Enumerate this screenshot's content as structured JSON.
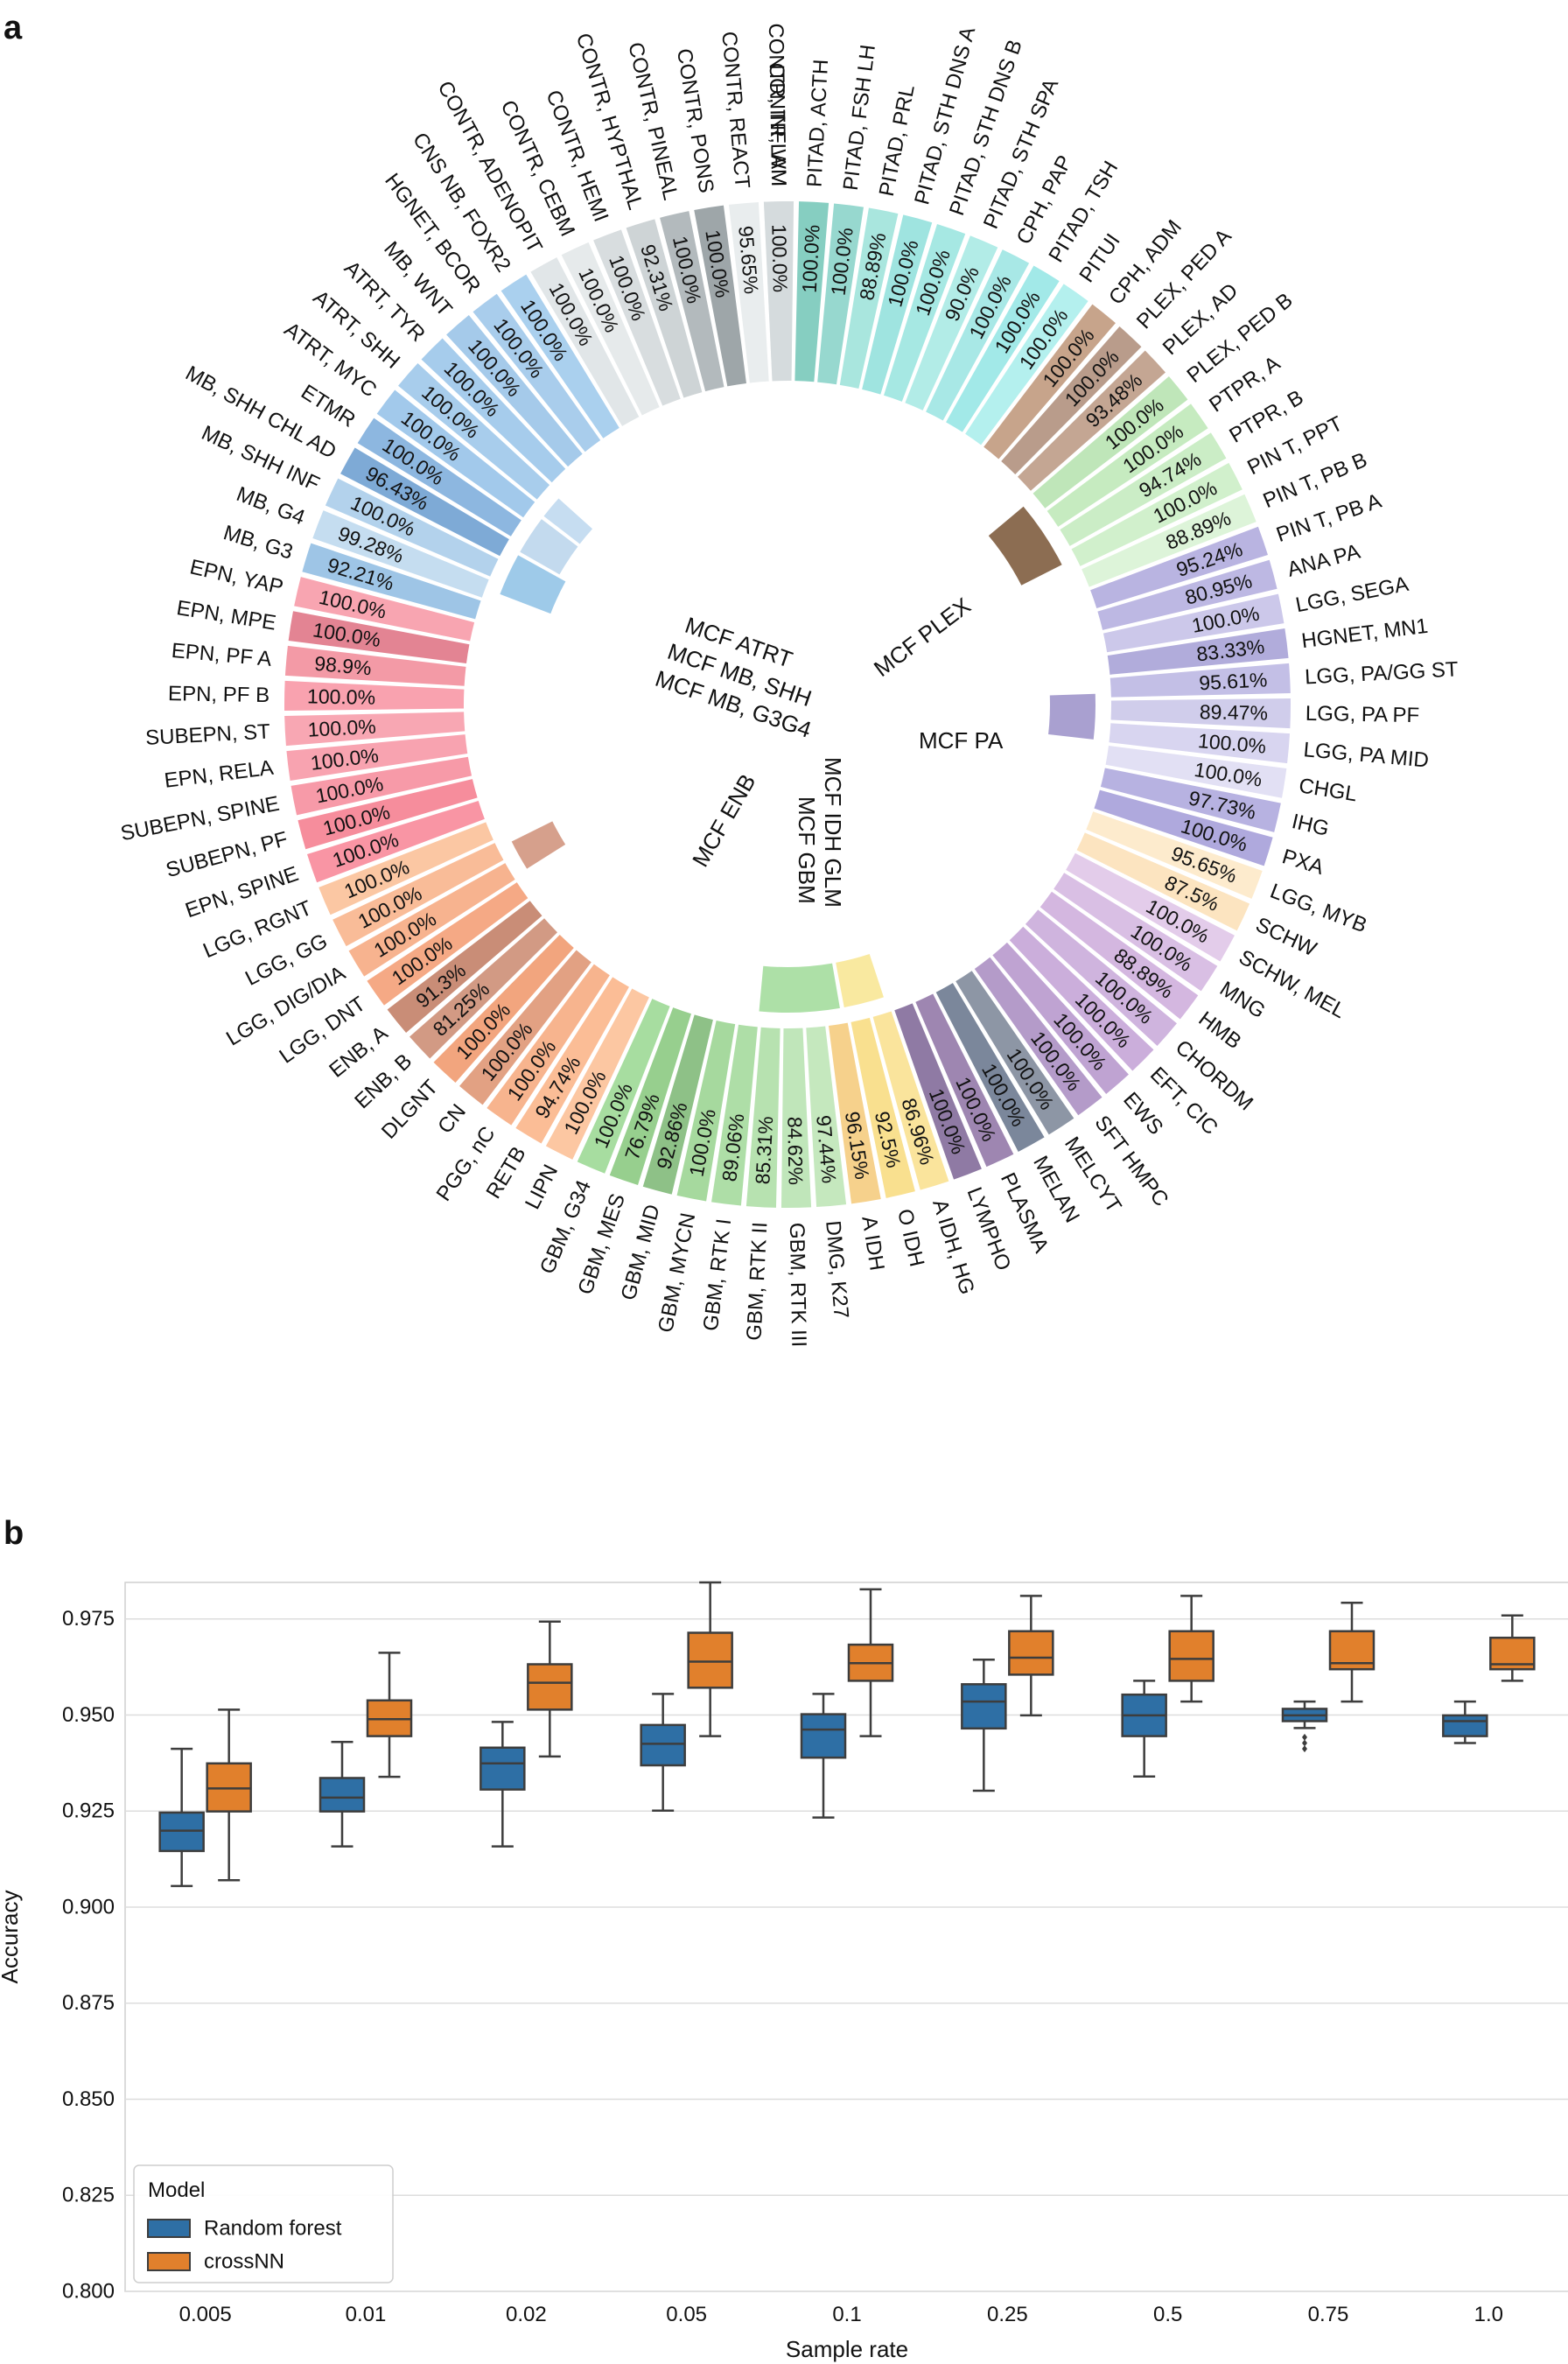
{
  "panels": {
    "a_label": "a",
    "b_label": "b"
  },
  "chart_data": [
    {
      "type": "circular-bar",
      "panel": "a",
      "value_unit": "%",
      "families": [
        {
          "name": "MCF ATRT",
          "color": "#9ECAE9"
        },
        {
          "name": "MCF MB, SHH",
          "color": "#C3DAEE"
        },
        {
          "name": "MCF MB, G3G4",
          "color": "#C6DDF1"
        },
        {
          "name": "MCF PLEX",
          "color": "#8C6D52"
        },
        {
          "name": "MCF PA",
          "color": "#A9A0D0"
        },
        {
          "name": "MCF ENB",
          "color": "#D6A08C"
        },
        {
          "name": "MCF GBM",
          "color": "#ADE0A7"
        },
        {
          "name": "MCF IDH GLM",
          "color": "#F9E9A0"
        }
      ],
      "classes": [
        {
          "label": "CONTR, INFLAM",
          "value": "100.0%",
          "color": "#EAEDED"
        },
        {
          "label": "PITAD, ACTH",
          "value": "100.0%",
          "color": "#86CEC1"
        },
        {
          "label": "PITAD, FSH LH",
          "value": "100.0%",
          "color": "#97D8CF"
        },
        {
          "label": "PITAD, PRL",
          "value": "88.89%",
          "color": "#A9E6DE"
        },
        {
          "label": "PITAD, STH DNS A",
          "value": "100.0%",
          "color": "#9FE4E0"
        },
        {
          "label": "PITAD, STH DNS B",
          "value": "100.0%",
          "color": "#A6E8E3"
        },
        {
          "label": "PITAD, STH SPA",
          "value": "90.0%",
          "color": "#B2ECE7"
        },
        {
          "label": "CPH, PAP",
          "value": "100.0%",
          "color": "#A8E8E6"
        },
        {
          "label": "PITAD, TSH",
          "value": "100.0%",
          "color": "#A2E9E8"
        },
        {
          "label": "PITUI",
          "value": "100.0%",
          "color": "#B4F0EE"
        },
        {
          "label": "CPH, ADM",
          "value": "100.0%",
          "color": "#C7A48B"
        },
        {
          "label": "PLEX, PED A",
          "value": "100.0%",
          "color": "#B99C8B"
        },
        {
          "label": "PLEX, AD",
          "value": "93.48%",
          "color": "#C4A693"
        },
        {
          "label": "PLEX, PED B",
          "value": "100.0%",
          "color": "#BFE6B9"
        },
        {
          "label": "PTPR, A",
          "value": "100.0%",
          "color": "#C6EBC0"
        },
        {
          "label": "PTPR, B",
          "value": "94.74%",
          "color": "#CBEDC6"
        },
        {
          "label": "PIN T, PPT",
          "value": "100.0%",
          "color": "#D1F0CC"
        },
        {
          "label": "PIN T, PB B",
          "value": "88.89%",
          "color": "#DDF4D9"
        },
        {
          "label": "PIN T, PB A",
          "value": "95.24%",
          "color": "#B9B4E1"
        },
        {
          "label": "ANA PA",
          "value": "80.95%",
          "color": "#BDB8E3"
        },
        {
          "label": "LGG, SEGA",
          "value": "100.0%",
          "color": "#CCC8EA"
        },
        {
          "label": "HGNET, MN1",
          "value": "83.33%",
          "color": "#B1ACDB"
        },
        {
          "label": "LGG, PA/GG ST",
          "value": "95.61%",
          "color": "#C3BFE6"
        },
        {
          "label": "LGG, PA PF",
          "value": "89.47%",
          "color": "#D0CDEB"
        },
        {
          "label": "LGG, PA MID",
          "value": "100.0%",
          "color": "#D8D5F0"
        },
        {
          "label": "CHGL",
          "value": "100.0%",
          "color": "#E2E0F4"
        },
        {
          "label": "IHG",
          "value": "97.73%",
          "color": "#B7B2E1"
        },
        {
          "label": "PXA",
          "value": "100.0%",
          "color": "#AFA9DD"
        },
        {
          "label": "LGG, MYB",
          "value": "95.65%",
          "color": "#FDEBCD"
        },
        {
          "label": "SCHW",
          "value": "87.5%",
          "color": "#FCE4C0"
        },
        {
          "label": "SCHW, MEL",
          "value": "100.0%",
          "color": "#E3CCEA"
        },
        {
          "label": "MNG",
          "value": "100.0%",
          "color": "#D9BFE4"
        },
        {
          "label": "HMB",
          "value": "88.89%",
          "color": "#D4B7E0"
        },
        {
          "label": "CHORDM",
          "value": "100.0%",
          "color": "#CFB4DE"
        },
        {
          "label": "EFT, CIC",
          "value": "100.0%",
          "color": "#CBAEDB"
        },
        {
          "label": "EWS",
          "value": "100.0%",
          "color": "#BFA3D2"
        },
        {
          "label": "SFT HMPC",
          "value": "100.0%",
          "color": "#B49BC9"
        },
        {
          "label": "MELCYT",
          "value": "100.0%",
          "color": "#8D96A5"
        },
        {
          "label": "MELAN",
          "value": "100.0%",
          "color": "#7B879B"
        },
        {
          "label": "PLASMA",
          "value": "100.0%",
          "color": "#9E86B1"
        },
        {
          "label": "LYMPHO",
          "value": "100.0%",
          "color": "#8F7AA4"
        },
        {
          "label": "A IDH, HG",
          "value": "86.96%",
          "color": "#FAE49C"
        },
        {
          "label": "O IDH",
          "value": "92.5%",
          "color": "#F9E08F"
        },
        {
          "label": "A IDH",
          "value": "96.15%",
          "color": "#F6D18C"
        },
        {
          "label": "DMG, K27",
          "value": "97.44%",
          "color": "#C5E8BE"
        },
        {
          "label": "GBM, RTK III",
          "value": "84.62%",
          "color": "#C0E6BA"
        },
        {
          "label": "GBM, RTK II",
          "value": "85.31%",
          "color": "#B7E2B0"
        },
        {
          "label": "GBM, RTK I",
          "value": "89.06%",
          "color": "#AEDEA7"
        },
        {
          "label": "GBM, MYCN",
          "value": "100.0%",
          "color": "#A6D99E"
        },
        {
          "label": "GBM, MID",
          "value": "92.86%",
          "color": "#8EC187"
        },
        {
          "label": "GBM, MES",
          "value": "76.79%",
          "color": "#97CF8E"
        },
        {
          "label": "GBM, G34",
          "value": "100.0%",
          "color": "#A7DDA0"
        },
        {
          "label": "LIPN",
          "value": "100.0%",
          "color": "#FCC7A2"
        },
        {
          "label": "RETB",
          "value": "94.74%",
          "color": "#FBBD96"
        },
        {
          "label": "PGG, nC",
          "value": "100.0%",
          "color": "#F7B48E"
        },
        {
          "label": "CN",
          "value": "100.0%",
          "color": "#E2A183"
        },
        {
          "label": "DLGNT",
          "value": "100.0%",
          "color": "#F2A57E"
        },
        {
          "label": "ENB, B",
          "value": "81.25%",
          "color": "#D29A84"
        },
        {
          "label": "ENB, A",
          "value": "91.3%",
          "color": "#C98D77"
        },
        {
          "label": "LGG, DNT",
          "value": "100.0%",
          "color": "#F5A985"
        },
        {
          "label": "LGG, DIG/DIA",
          "value": "100.0%",
          "color": "#F7B38F"
        },
        {
          "label": "LGG, GG",
          "value": "100.0%",
          "color": "#F9BC98"
        },
        {
          "label": "LGG, RGNT",
          "value": "100.0%",
          "color": "#FBC7A3"
        },
        {
          "label": "EPN, SPINE",
          "value": "100.0%",
          "color": "#F995A4"
        },
        {
          "label": "SUBEPN, PF",
          "value": "100.0%",
          "color": "#F68D9C"
        },
        {
          "label": "SUBEPN, SPINE",
          "value": "100.0%",
          "color": "#F79AA8"
        },
        {
          "label": "EPN, RELA",
          "value": "100.0%",
          "color": "#F8A3B0"
        },
        {
          "label": "SUBEPN, ST",
          "value": "100.0%",
          "color": "#F8A7B3"
        },
        {
          "label": "EPN, PF B",
          "value": "100.0%",
          "color": "#F9A2AF"
        },
        {
          "label": "EPN, PF A",
          "value": "98.9%",
          "color": "#F39AA6"
        },
        {
          "label": "EPN, MPE",
          "value": "100.0%",
          "color": "#E38493"
        },
        {
          "label": "EPN, YAP",
          "value": "100.0%",
          "color": "#F8A5B1"
        },
        {
          "label": "MB, G3",
          "value": "92.21%",
          "color": "#9EC5E6"
        },
        {
          "label": "MB, G4",
          "value": "99.28%",
          "color": "#C5DDF0"
        },
        {
          "label": "MB, SHH INF",
          "value": "100.0%",
          "color": "#B3D2EC"
        },
        {
          "label": "MB, SHH CHL AD",
          "value": "96.43%",
          "color": "#7EAAD6"
        },
        {
          "label": "ETMR",
          "value": "100.0%",
          "color": "#8DB7E0"
        },
        {
          "label": "ATRT, MYC",
          "value": "100.0%",
          "color": "#A2C9EB"
        },
        {
          "label": "ATRT, SHH",
          "value": "100.0%",
          "color": "#A8CDEC"
        },
        {
          "label": "ATRT, TYR",
          "value": "100.0%",
          "color": "#A6CCEC"
        },
        {
          "label": "MB, WNT",
          "value": "100.0%",
          "color": "#A5CAEA"
        },
        {
          "label": "HGNET, BCOR",
          "value": "100.0%",
          "color": "#A9CDEC"
        },
        {
          "label": "CNS NB, FOXR2",
          "value": "100.0%",
          "color": "#AAD0EE"
        },
        {
          "label": "CONTR, ADENOPIT",
          "value": "100.0%",
          "color": "#E1E6E8"
        },
        {
          "label": "CONTR, CEBM",
          "value": "100.0%",
          "color": "#E6EAEB"
        },
        {
          "label": "CONTR, HEMI",
          "value": "100.0%",
          "color": "#D8DDDF"
        },
        {
          "label": "CONTR, HYPTHAL",
          "value": "92.31%",
          "color": "#CED4D6"
        },
        {
          "label": "CONTR, PINEAL",
          "value": "100.0%",
          "color": "#B3BABD"
        },
        {
          "label": "CONTR, PONS",
          "value": "100.0%",
          "color": "#9EA6A9"
        },
        {
          "label": "CONTR, REACT",
          "value": "95.65%",
          "color": "#E9EDEE"
        },
        {
          "label": "CONTR, WM",
          "value": "100.0%",
          "color": "#D5DBDD"
        }
      ]
    },
    {
      "type": "box",
      "panel": "b",
      "title": "",
      "xlabel": "Sample rate",
      "ylabel": "Accuracy",
      "categories": [
        "0.005",
        "0.01",
        "0.02",
        "0.05",
        "0.1",
        "0.25",
        "0.5",
        "0.75",
        "1.0"
      ],
      "yticks": [
        "0.800",
        "0.825",
        "0.850",
        "0.875",
        "0.900",
        "0.925",
        "0.950",
        "0.975"
      ],
      "ylim": [
        0.8,
        0.9845
      ],
      "grid": true,
      "legend": {
        "title": "Model",
        "placement": "bottom-left"
      },
      "series": [
        {
          "name": "Random forest",
          "color": "#2E6FA5",
          "boxes": [
            {
              "whislo": 0.9055,
              "q1": 0.9146,
              "med": 0.9199,
              "q3": 0.9246,
              "whishi": 0.9412,
              "fliers": []
            },
            {
              "whislo": 0.9158,
              "q1": 0.9249,
              "med": 0.9285,
              "q3": 0.9336,
              "whishi": 0.943,
              "fliers": []
            },
            {
              "whislo": 0.9158,
              "q1": 0.9306,
              "med": 0.9374,
              "q3": 0.9415,
              "whishi": 0.9482,
              "fliers": []
            },
            {
              "whislo": 0.9251,
              "q1": 0.9369,
              "med": 0.9425,
              "q3": 0.9474,
              "whishi": 0.9555,
              "fliers": []
            },
            {
              "whislo": 0.9233,
              "q1": 0.9389,
              "med": 0.9462,
              "q3": 0.9502,
              "whishi": 0.9555,
              "fliers": []
            },
            {
              "whislo": 0.9303,
              "q1": 0.9465,
              "med": 0.9535,
              "q3": 0.958,
              "whishi": 0.9644,
              "fliers": []
            },
            {
              "whislo": 0.934,
              "q1": 0.9445,
              "med": 0.9499,
              "q3": 0.9553,
              "whishi": 0.9589,
              "fliers": []
            },
            {
              "whislo": 0.9466,
              "q1": 0.9484,
              "med": 0.9499,
              "q3": 0.9516,
              "whishi": 0.9535,
              "fliers": [
                0.9442,
                0.9427,
                0.9412
              ]
            },
            {
              "whislo": 0.9427,
              "q1": 0.9445,
              "med": 0.9484,
              "q3": 0.9499,
              "whishi": 0.9535,
              "fliers": []
            }
          ]
        },
        {
          "name": "crossNN",
          "color": "#E1802C",
          "boxes": [
            {
              "whislo": 0.907,
              "q1": 0.9249,
              "med": 0.9309,
              "q3": 0.9374,
              "whishi": 0.9514,
              "fliers": []
            },
            {
              "whislo": 0.9339,
              "q1": 0.9445,
              "med": 0.9489,
              "q3": 0.9538,
              "whishi": 0.9662,
              "fliers": []
            },
            {
              "whislo": 0.9392,
              "q1": 0.9514,
              "med": 0.9584,
              "q3": 0.9632,
              "whishi": 0.9743,
              "fliers": []
            },
            {
              "whislo": 0.9445,
              "q1": 0.9571,
              "med": 0.9639,
              "q3": 0.9714,
              "whishi": 0.9845,
              "fliers": []
            },
            {
              "whislo": 0.9445,
              "q1": 0.9589,
              "med": 0.9635,
              "q3": 0.9683,
              "whishi": 0.9827,
              "fliers": []
            },
            {
              "whislo": 0.9499,
              "q1": 0.9605,
              "med": 0.9649,
              "q3": 0.9718,
              "whishi": 0.981,
              "fliers": []
            },
            {
              "whislo": 0.9535,
              "q1": 0.9589,
              "med": 0.9646,
              "q3": 0.9718,
              "whishi": 0.981,
              "fliers": []
            },
            {
              "whislo": 0.9535,
              "q1": 0.9619,
              "med": 0.9635,
              "q3": 0.9718,
              "whishi": 0.9792,
              "fliers": []
            },
            {
              "whislo": 0.9589,
              "q1": 0.9619,
              "med": 0.9632,
              "q3": 0.9701,
              "whishi": 0.9759,
              "fliers": []
            }
          ]
        }
      ]
    }
  ]
}
